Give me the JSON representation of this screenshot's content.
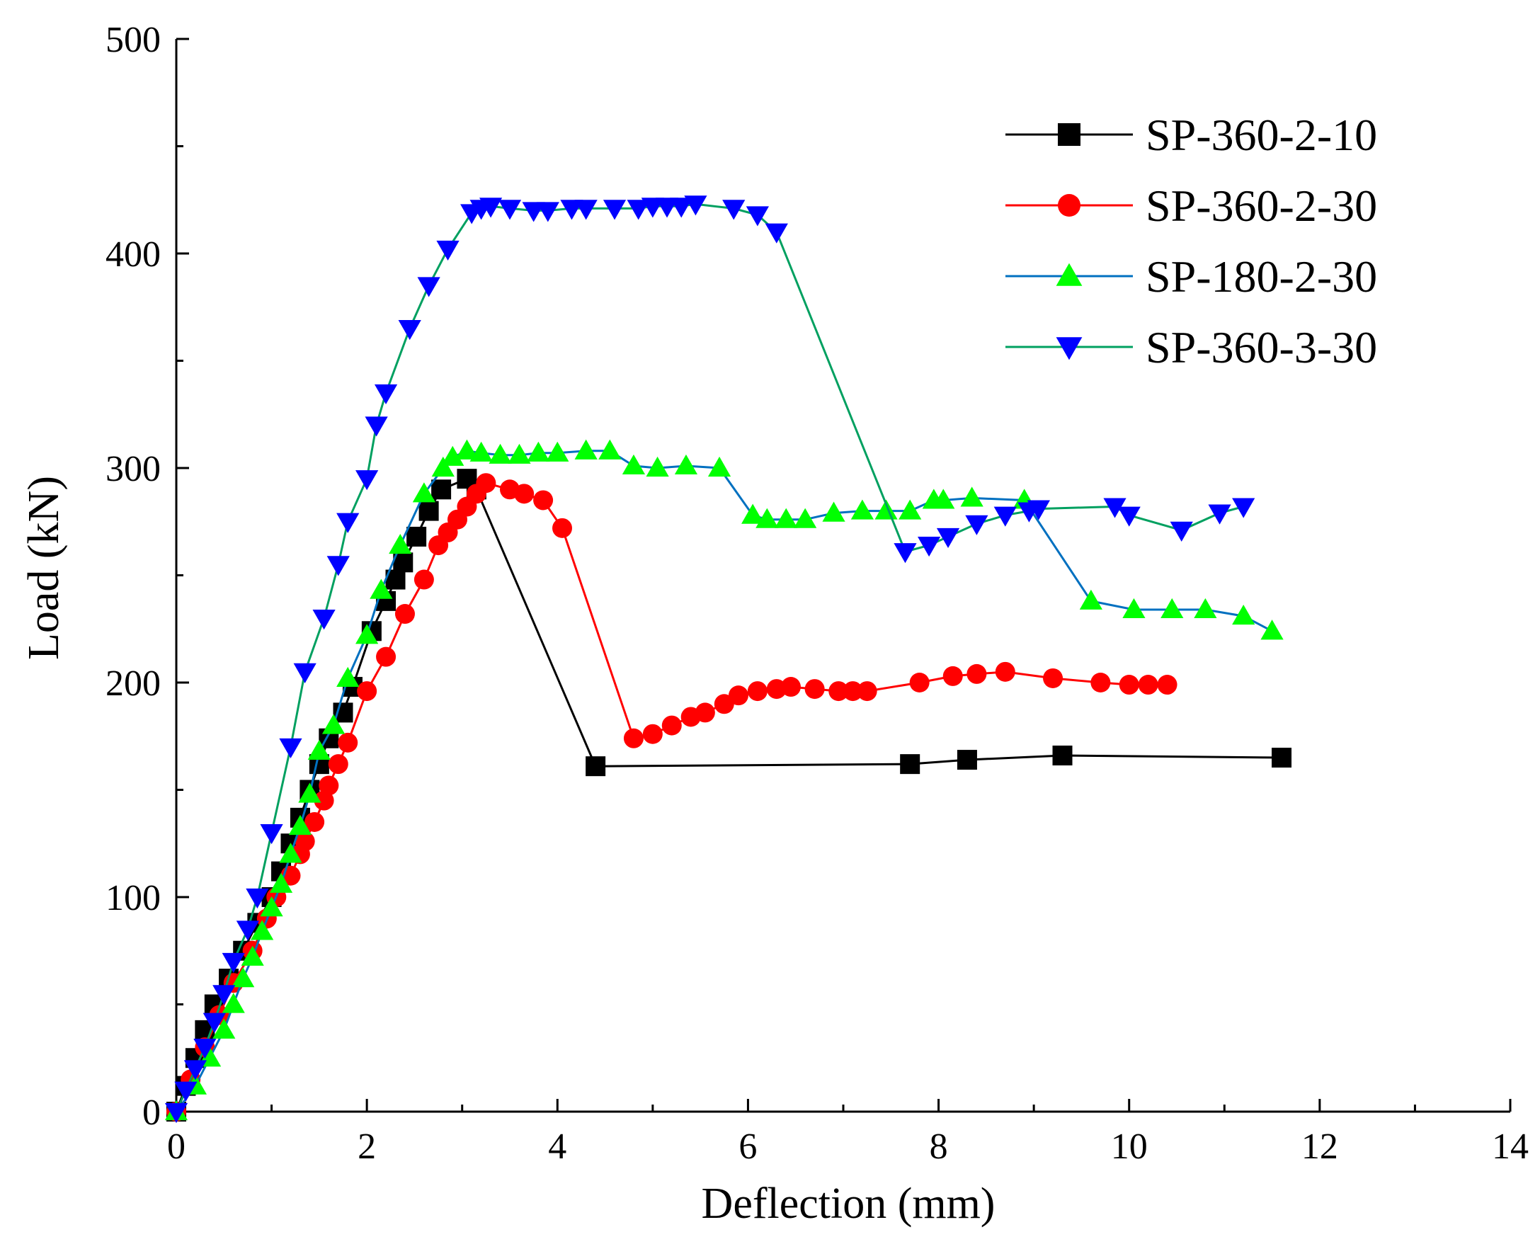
{
  "chart_data": {
    "type": "line",
    "title": "",
    "xlabel": "Deflection (mm)",
    "ylabel": "Load (kN)",
    "xlim": [
      0,
      14
    ],
    "ylim": [
      0,
      500
    ],
    "xticks": [
      0,
      2,
      4,
      6,
      8,
      10,
      12,
      14
    ],
    "yticks": [
      0,
      100,
      200,
      300,
      400,
      500
    ],
    "grid": false,
    "legend_position": "top-right",
    "series": [
      {
        "name": "SP-360-2-10",
        "line_color": "#000000",
        "marker_color": "#000000",
        "marker": "square",
        "points": [
          [
            0,
            0
          ],
          [
            0.1,
            12
          ],
          [
            0.2,
            25
          ],
          [
            0.3,
            38
          ],
          [
            0.4,
            50
          ],
          [
            0.55,
            62
          ],
          [
            0.7,
            75
          ],
          [
            0.85,
            88
          ],
          [
            1.0,
            100
          ],
          [
            1.1,
            112
          ],
          [
            1.2,
            125
          ],
          [
            1.3,
            137
          ],
          [
            1.4,
            150
          ],
          [
            1.5,
            162
          ],
          [
            1.6,
            174
          ],
          [
            1.75,
            186
          ],
          [
            1.85,
            198
          ],
          [
            2.05,
            224
          ],
          [
            2.2,
            238
          ],
          [
            2.3,
            248
          ],
          [
            2.38,
            256
          ],
          [
            2.52,
            268
          ],
          [
            2.65,
            280
          ],
          [
            2.78,
            290
          ],
          [
            3.05,
            295
          ],
          [
            3.15,
            290
          ],
          [
            4.4,
            161
          ],
          [
            7.7,
            162
          ],
          [
            8.3,
            164
          ],
          [
            9.3,
            166
          ],
          [
            11.6,
            165
          ]
        ]
      },
      {
        "name": "SP-360-2-30",
        "line_color": "#ff0000",
        "marker_color": "#ff0000",
        "marker": "circle",
        "points": [
          [
            0,
            0
          ],
          [
            0.15,
            15
          ],
          [
            0.3,
            30
          ],
          [
            0.45,
            45
          ],
          [
            0.6,
            60
          ],
          [
            0.8,
            75
          ],
          [
            0.95,
            90
          ],
          [
            1.05,
            100
          ],
          [
            1.2,
            110
          ],
          [
            1.3,
            120
          ],
          [
            1.35,
            126
          ],
          [
            1.45,
            135
          ],
          [
            1.55,
            145
          ],
          [
            1.6,
            152
          ],
          [
            1.7,
            162
          ],
          [
            1.8,
            172
          ],
          [
            2.0,
            196
          ],
          [
            2.2,
            212
          ],
          [
            2.4,
            232
          ],
          [
            2.6,
            248
          ],
          [
            2.75,
            264
          ],
          [
            2.85,
            270
          ],
          [
            2.95,
            276
          ],
          [
            3.05,
            282
          ],
          [
            3.15,
            288
          ],
          [
            3.25,
            293
          ],
          [
            3.5,
            290
          ],
          [
            3.65,
            288
          ],
          [
            3.85,
            285
          ],
          [
            4.05,
            272
          ],
          [
            4.8,
            174
          ],
          [
            5.0,
            176
          ],
          [
            5.2,
            180
          ],
          [
            5.4,
            184
          ],
          [
            5.55,
            186
          ],
          [
            5.75,
            190
          ],
          [
            5.9,
            194
          ],
          [
            6.1,
            196
          ],
          [
            6.3,
            197
          ],
          [
            6.45,
            198
          ],
          [
            6.7,
            197
          ],
          [
            6.95,
            196
          ],
          [
            7.1,
            196
          ],
          [
            7.25,
            196
          ],
          [
            7.8,
            200
          ],
          [
            8.15,
            203
          ],
          [
            8.4,
            204
          ],
          [
            8.7,
            205
          ],
          [
            9.2,
            202
          ],
          [
            9.7,
            200
          ],
          [
            10.0,
            199
          ],
          [
            10.2,
            199
          ],
          [
            10.4,
            199
          ]
        ]
      },
      {
        "name": "SP-180-2-30",
        "line_color": "#0070c0",
        "marker_color": "#00ff00",
        "marker": "triangle-up",
        "points": [
          [
            0,
            0
          ],
          [
            0.2,
            12
          ],
          [
            0.35,
            25
          ],
          [
            0.5,
            38
          ],
          [
            0.6,
            50
          ],
          [
            0.7,
            62
          ],
          [
            0.8,
            72
          ],
          [
            0.9,
            84
          ],
          [
            1.0,
            95
          ],
          [
            1.1,
            106
          ],
          [
            1.2,
            120
          ],
          [
            1.3,
            133
          ],
          [
            1.4,
            148
          ],
          [
            1.5,
            168
          ],
          [
            1.65,
            180
          ],
          [
            1.8,
            202
          ],
          [
            2.0,
            222
          ],
          [
            2.15,
            243
          ],
          [
            2.35,
            264
          ],
          [
            2.6,
            288
          ],
          [
            2.8,
            300
          ],
          [
            2.9,
            305
          ],
          [
            3.05,
            308
          ],
          [
            3.2,
            307
          ],
          [
            3.4,
            306
          ],
          [
            3.6,
            306
          ],
          [
            3.8,
            307
          ],
          [
            4.0,
            307
          ],
          [
            4.3,
            308
          ],
          [
            4.55,
            308
          ],
          [
            4.8,
            301
          ],
          [
            5.05,
            300
          ],
          [
            5.35,
            301
          ],
          [
            5.7,
            300
          ],
          [
            6.05,
            278
          ],
          [
            6.2,
            276
          ],
          [
            6.4,
            276
          ],
          [
            6.6,
            276
          ],
          [
            6.9,
            279
          ],
          [
            7.2,
            280
          ],
          [
            7.45,
            280
          ],
          [
            7.7,
            280
          ],
          [
            7.95,
            285
          ],
          [
            8.05,
            285
          ],
          [
            8.35,
            286
          ],
          [
            8.9,
            285
          ],
          [
            9.6,
            238
          ],
          [
            10.05,
            234
          ],
          [
            10.45,
            234
          ],
          [
            10.8,
            234
          ],
          [
            11.2,
            231
          ],
          [
            11.5,
            224
          ]
        ]
      },
      {
        "name": "SP-360-3-30",
        "line_color": "#00a060",
        "marker_color": "#0000ff",
        "marker": "triangle-down",
        "points": [
          [
            0,
            0
          ],
          [
            0.1,
            10
          ],
          [
            0.2,
            20
          ],
          [
            0.3,
            30
          ],
          [
            0.4,
            42
          ],
          [
            0.5,
            55
          ],
          [
            0.6,
            70
          ],
          [
            0.75,
            85
          ],
          [
            0.85,
            100
          ],
          [
            1.0,
            130
          ],
          [
            1.2,
            170
          ],
          [
            1.35,
            205
          ],
          [
            1.55,
            230
          ],
          [
            1.7,
            255
          ],
          [
            1.8,
            275
          ],
          [
            2.0,
            295
          ],
          [
            2.1,
            320
          ],
          [
            2.2,
            335
          ],
          [
            2.45,
            365
          ],
          [
            2.65,
            385
          ],
          [
            2.85,
            402
          ],
          [
            3.1,
            419
          ],
          [
            3.2,
            421
          ],
          [
            3.3,
            422
          ],
          [
            3.5,
            421
          ],
          [
            3.75,
            420
          ],
          [
            3.9,
            420
          ],
          [
            4.15,
            421
          ],
          [
            4.3,
            421
          ],
          [
            4.6,
            421
          ],
          [
            4.85,
            421
          ],
          [
            5.0,
            422
          ],
          [
            5.15,
            422
          ],
          [
            5.3,
            422
          ],
          [
            5.45,
            423
          ],
          [
            5.85,
            421
          ],
          [
            6.1,
            418
          ],
          [
            6.3,
            410
          ],
          [
            7.65,
            261
          ],
          [
            7.9,
            264
          ],
          [
            8.1,
            268
          ],
          [
            8.4,
            274
          ],
          [
            8.7,
            278
          ],
          [
            8.95,
            280
          ],
          [
            9.05,
            281
          ],
          [
            9.85,
            282
          ],
          [
            10.0,
            278
          ],
          [
            10.55,
            271
          ],
          [
            10.95,
            279
          ],
          [
            11.2,
            282
          ]
        ]
      }
    ]
  }
}
